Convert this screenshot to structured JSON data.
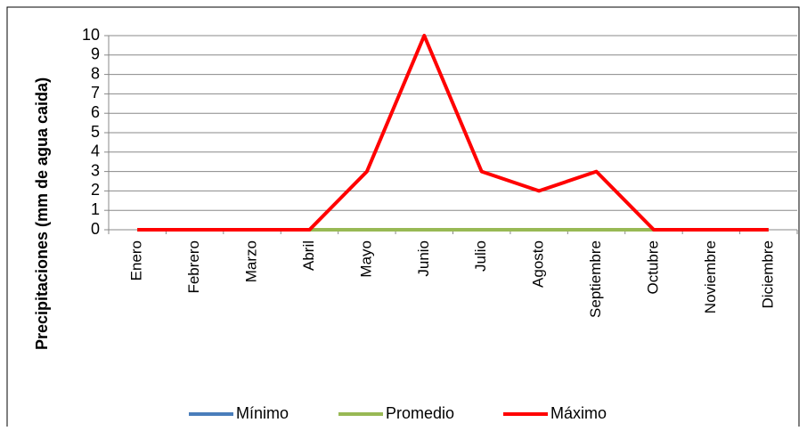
{
  "chart_data": {
    "type": "line",
    "y_label": "Precipitaciones (mm de agua  caida)",
    "categories": [
      "Enero",
      "Febrero",
      "Marzo",
      "Abril",
      "Mayo",
      "Junio",
      "Julio",
      "Agosto",
      "Septiembre",
      "Octubre",
      "Noviembre",
      "Diciembre"
    ],
    "series": [
      {
        "name": "Mínimo",
        "color": "#4a7ebb",
        "values": [
          0,
          0,
          0,
          0,
          0,
          0,
          0,
          0,
          0,
          0,
          0,
          0
        ]
      },
      {
        "name": "Promedio",
        "color": "#98b954",
        "values": [
          0,
          0,
          0,
          0,
          0,
          0,
          0,
          0,
          0,
          0,
          0,
          0
        ]
      },
      {
        "name": "Máximo",
        "color": "#ff0000",
        "values": [
          0,
          0,
          0,
          0,
          3,
          10,
          3,
          2,
          3,
          0,
          0,
          0
        ]
      }
    ],
    "ylim": [
      0,
      10
    ],
    "yticks": [
      0,
      1,
      2,
      3,
      4,
      5,
      6,
      7,
      8,
      9,
      10
    ],
    "grid": true,
    "legend": "bottom"
  }
}
